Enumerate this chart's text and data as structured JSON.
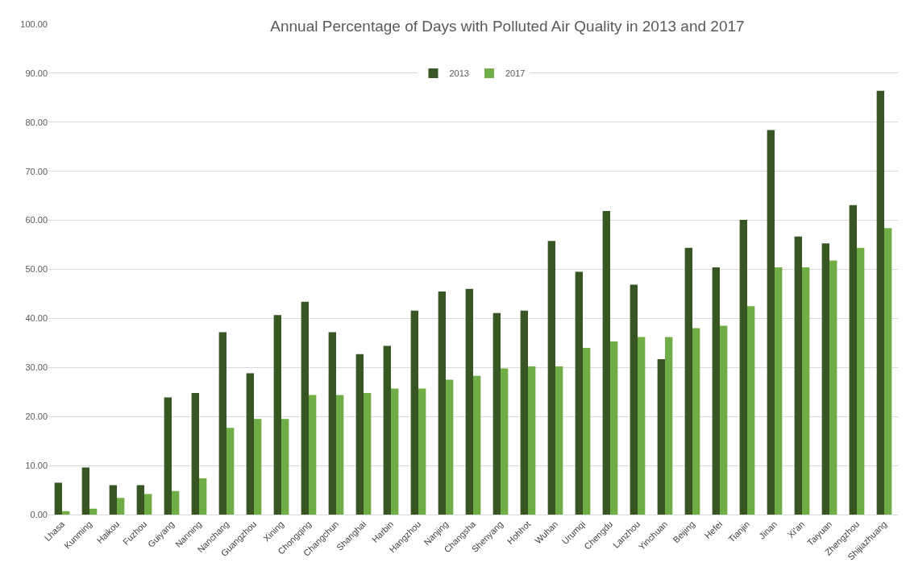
{
  "chart_data": {
    "type": "bar",
    "title": "Annual Percentage of Days with Polluted Air Quality in 2013 and 2017",
    "categories": [
      "Lhasa",
      "Kunming",
      "Haikou",
      "Fuzhou",
      "Guiyang",
      "Nanning",
      "Nanchang",
      "Guangzhou",
      "Xining",
      "Chongqing",
      "Changchun",
      "Shanghai",
      "Harbin",
      "Hangzhou",
      "Nanjing",
      "Changsha",
      "Shenyang",
      "Hohhot",
      "Wuhan",
      "Urumqi",
      "Chengdu",
      "Lanzhou",
      "Yinchuan",
      "Beijing",
      "Hefei",
      "Tianjin",
      "Jinan",
      "Xi'an",
      "Taiyuan",
      "Zhengzhou",
      "Shijiazhuang"
    ],
    "series": [
      {
        "name": "2013",
        "color": "#375623",
        "values": [
          6.5,
          9.6,
          6.0,
          6.0,
          23.9,
          24.8,
          37.2,
          28.8,
          40.7,
          43.4,
          37.2,
          32.7,
          34.4,
          41.6,
          45.5,
          46.0,
          41.1,
          41.6,
          55.8,
          49.5,
          61.9,
          46.9,
          31.7,
          54.4,
          50.4,
          60.1,
          78.4,
          56.7,
          55.3,
          63.1,
          86.4
        ]
      },
      {
        "name": "2017",
        "color": "#70ad47",
        "values": [
          0.7,
          1.2,
          3.4,
          4.2,
          4.8,
          7.4,
          17.7,
          19.5,
          19.5,
          24.4,
          24.4,
          24.8,
          25.7,
          25.7,
          27.5,
          28.3,
          29.8,
          30.2,
          30.2,
          34.0,
          35.3,
          36.2,
          36.2,
          38.0,
          38.5,
          42.5,
          50.4,
          50.4,
          51.8,
          54.4,
          58.4
        ]
      }
    ],
    "ylim": [
      0,
      100
    ],
    "yticks": [
      {
        "value": 0,
        "label": "0.00"
      },
      {
        "value": 10,
        "label": "10.00"
      },
      {
        "value": 20,
        "label": "20.00"
      },
      {
        "value": 30,
        "label": "30.00"
      },
      {
        "value": 40,
        "label": "40.00"
      },
      {
        "value": 50,
        "label": "50.00"
      },
      {
        "value": 60,
        "label": "60.00"
      },
      {
        "value": 70,
        "label": "70.00"
      },
      {
        "value": 80,
        "label": "80.00"
      },
      {
        "value": 90,
        "label": "90.00"
      },
      {
        "value": 100,
        "label": "100.00"
      }
    ],
    "grid": "y",
    "legend": "top"
  }
}
